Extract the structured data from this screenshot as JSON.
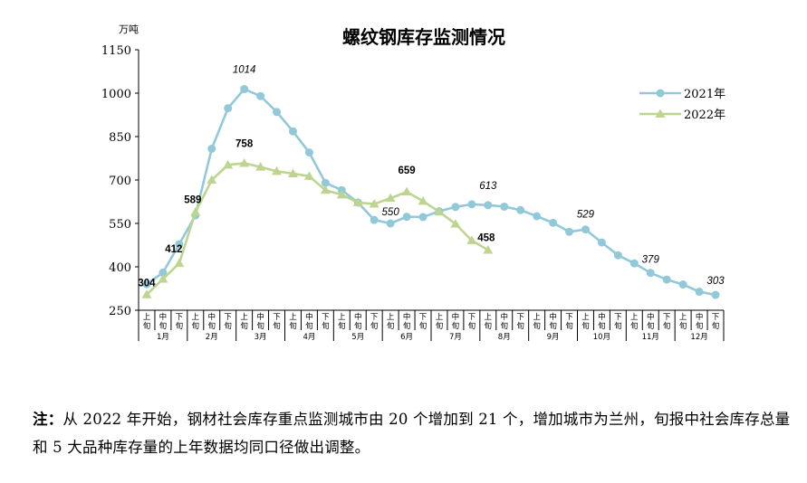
{
  "chart_data": {
    "type": "line",
    "title": "螺纹钢库存监测情况",
    "ylabel": "万吨",
    "ylim": [
      250,
      1150
    ],
    "yticks": [
      250,
      400,
      550,
      700,
      850,
      1000,
      1150
    ],
    "grid": false,
    "legend_position": "top-right",
    "subcategories": [
      "上旬",
      "中旬",
      "下旬"
    ],
    "months": [
      "1月",
      "2月",
      "3月",
      "4月",
      "5月",
      "6月",
      "7月",
      "8月",
      "9月",
      "10月",
      "11月",
      "12月"
    ],
    "series": [
      {
        "name": "2021年",
        "color": "#92c9d8",
        "marker": "circle",
        "values": [
          340,
          380,
          478,
          578,
          808,
          948,
          1014,
          990,
          935,
          868,
          795,
          690,
          665,
          622,
          562,
          550,
          573,
          572,
          592,
          607,
          616,
          613,
          608,
          596,
          575,
          552,
          521,
          529,
          484,
          440,
          412,
          379,
          356,
          339,
          314,
          303
        ],
        "labels": [
          {
            "index": 6,
            "text": "1014"
          },
          {
            "index": 15,
            "text": "550"
          },
          {
            "index": 21,
            "text": "613"
          },
          {
            "index": 27,
            "text": "529"
          },
          {
            "index": 31,
            "text": "379"
          },
          {
            "index": 35,
            "text": "303"
          }
        ]
      },
      {
        "name": "2022年",
        "color": "#bed591",
        "marker": "triangle",
        "values": [
          304,
          358,
          412,
          589,
          700,
          752,
          758,
          745,
          730,
          722,
          713,
          665,
          649,
          622,
          617,
          637,
          659,
          627,
          590,
          548,
          491,
          458
        ],
        "labels": [
          {
            "index": 0,
            "text": "304"
          },
          {
            "index": 2,
            "text": "412"
          },
          {
            "index": 3,
            "text": "589"
          },
          {
            "index": 6,
            "text": "758"
          },
          {
            "index": 16,
            "text": "659"
          },
          {
            "index": 21,
            "text": "458"
          }
        ]
      }
    ]
  },
  "note": {
    "label": "注：",
    "text": "从 2022 年开始，钢材社会库存重点监测城市由 20 个增加到 21 个，增加城市为兰州，旬报中社会库存总量和 5 大品种库存量的上年数据均同口径做出调整。"
  }
}
